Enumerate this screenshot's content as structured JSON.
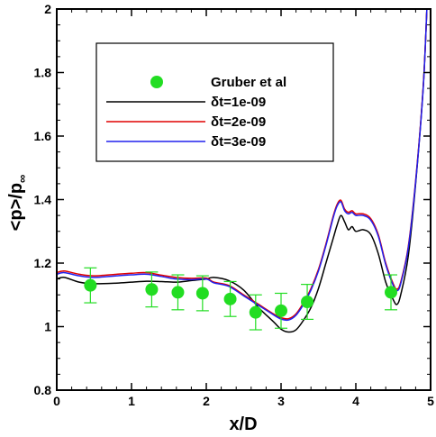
{
  "chart_data": {
    "type": "line",
    "xlabel": "x/D",
    "ylabel_main": "<p>/p",
    "ylabel_sub": "∞",
    "xlim": [
      0,
      5
    ],
    "ylim": [
      0.8,
      2
    ],
    "x_ticks": [
      "0",
      "1",
      "2",
      "3",
      "4",
      "5"
    ],
    "y_ticks": [
      "0.8",
      "1",
      "1.2",
      "1.4",
      "1.6",
      "1.8",
      "2"
    ],
    "grid": false,
    "legend": {
      "position": "top-center",
      "entries": [
        {
          "label": "Gruber et al",
          "marker": "circle",
          "color": "#22dd22"
        },
        {
          "label": "δt=1e-09",
          "color": "#000000"
        },
        {
          "label": "δt=2e-09",
          "color": "#e00000"
        },
        {
          "label": "δt=3e-09",
          "color": "#2020ee"
        }
      ]
    },
    "experiment": {
      "name": "Gruber et al",
      "color": "#22dd22",
      "x": [
        0.45,
        1.27,
        1.62,
        1.95,
        2.32,
        2.66,
        3.0,
        3.35,
        4.47
      ],
      "y": [
        1.13,
        1.117,
        1.108,
        1.105,
        1.087,
        1.045,
        1.05,
        1.078,
        1.108
      ],
      "err": [
        0.055,
        0.055,
        0.055,
        0.055,
        0.055,
        0.055,
        0.055,
        0.055,
        0.055
      ]
    },
    "series": [
      {
        "name": "δt=1e-09",
        "color": "#000000",
        "x": [
          0,
          0.1,
          0.3,
          0.5,
          0.8,
          1.0,
          1.2,
          1.4,
          1.6,
          1.8,
          2.0,
          2.1,
          2.3,
          2.5,
          2.7,
          2.9,
          3.0,
          3.1,
          3.2,
          3.3,
          3.4,
          3.5,
          3.6,
          3.7,
          3.75,
          3.8,
          3.85,
          3.9,
          3.95,
          4.0,
          4.1,
          4.2,
          4.3,
          4.4,
          4.5,
          4.55,
          4.6,
          4.7,
          4.8,
          4.9,
          4.95
        ],
        "y": [
          1.15,
          1.155,
          1.14,
          1.135,
          1.137,
          1.14,
          1.143,
          1.142,
          1.14,
          1.145,
          1.15,
          1.155,
          1.145,
          1.115,
          1.06,
          1.015,
          0.992,
          0.983,
          0.99,
          1.02,
          1.06,
          1.12,
          1.2,
          1.28,
          1.32,
          1.35,
          1.33,
          1.305,
          1.315,
          1.3,
          1.305,
          1.29,
          1.23,
          1.14,
          1.085,
          1.07,
          1.1,
          1.22,
          1.45,
          1.75,
          2.0
        ]
      },
      {
        "name": "δt=2e-09",
        "color": "#e00000",
        "x": [
          0,
          0.1,
          0.3,
          0.5,
          0.8,
          1.0,
          1.2,
          1.4,
          1.6,
          1.8,
          2.0,
          2.1,
          2.3,
          2.5,
          2.7,
          2.9,
          3.0,
          3.1,
          3.2,
          3.3,
          3.4,
          3.5,
          3.6,
          3.7,
          3.75,
          3.8,
          3.85,
          3.9,
          3.95,
          4.0,
          4.1,
          4.2,
          4.3,
          4.4,
          4.5,
          4.55,
          4.6,
          4.7,
          4.8,
          4.9,
          4.95
        ],
        "y": [
          1.17,
          1.175,
          1.165,
          1.16,
          1.165,
          1.168,
          1.17,
          1.162,
          1.155,
          1.152,
          1.153,
          1.14,
          1.13,
          1.1,
          1.07,
          1.04,
          1.028,
          1.025,
          1.04,
          1.075,
          1.12,
          1.18,
          1.26,
          1.35,
          1.385,
          1.398,
          1.37,
          1.36,
          1.365,
          1.355,
          1.355,
          1.34,
          1.29,
          1.2,
          1.135,
          1.118,
          1.14,
          1.25,
          1.46,
          1.75,
          2.0
        ]
      },
      {
        "name": "δt=3e-09",
        "color": "#2020ee",
        "x": [
          0,
          0.1,
          0.3,
          0.5,
          0.8,
          1.0,
          1.2,
          1.4,
          1.6,
          1.8,
          2.0,
          2.1,
          2.3,
          2.5,
          2.7,
          2.9,
          3.0,
          3.1,
          3.2,
          3.3,
          3.4,
          3.5,
          3.6,
          3.7,
          3.75,
          3.8,
          3.85,
          3.9,
          3.95,
          4.0,
          4.1,
          4.2,
          4.3,
          4.4,
          4.5,
          4.55,
          4.6,
          4.7,
          4.8,
          4.9,
          4.95
        ],
        "y": [
          1.165,
          1.17,
          1.16,
          1.155,
          1.16,
          1.163,
          1.165,
          1.158,
          1.15,
          1.148,
          1.15,
          1.138,
          1.127,
          1.097,
          1.067,
          1.037,
          1.024,
          1.021,
          1.036,
          1.07,
          1.115,
          1.175,
          1.255,
          1.345,
          1.38,
          1.393,
          1.365,
          1.355,
          1.36,
          1.35,
          1.35,
          1.335,
          1.285,
          1.195,
          1.13,
          1.113,
          1.135,
          1.245,
          1.455,
          1.745,
          2.0
        ]
      }
    ]
  }
}
